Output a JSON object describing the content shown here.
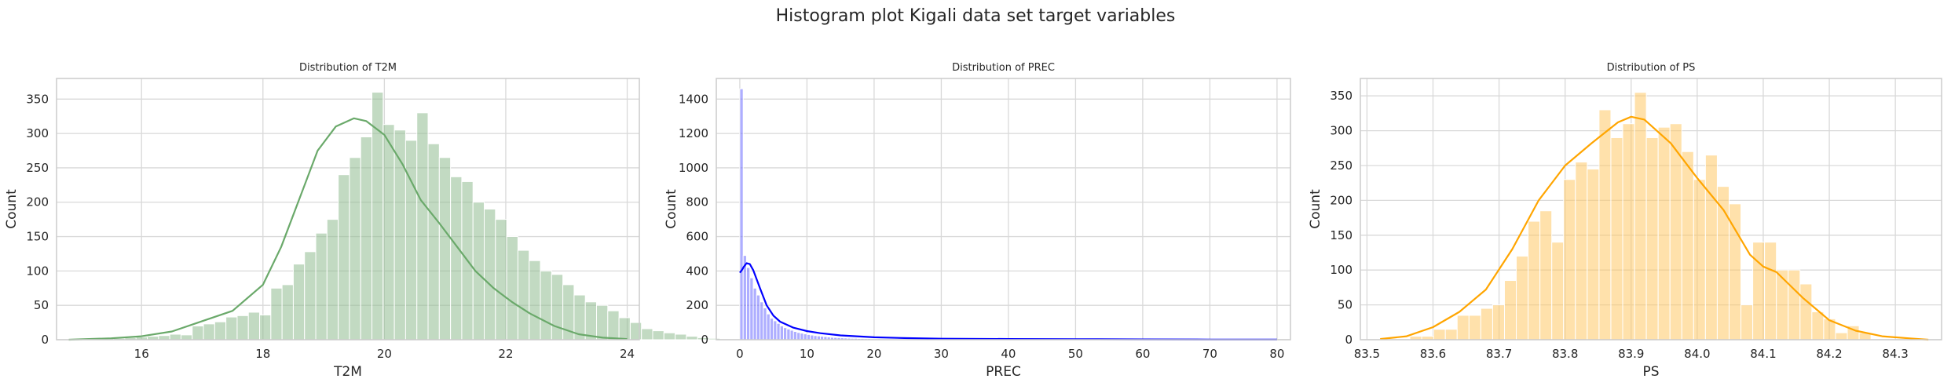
{
  "figure": {
    "suptitle": "Histogram plot Kigali data set target variables"
  },
  "chart_data": [
    {
      "type": "bar",
      "subtype": "histogram-with-kde",
      "title": "Distribution of T2M",
      "xlabel": "T2M",
      "ylabel": "Count",
      "color": "#8fbc8f",
      "kde_color": "#6aa96a",
      "xlim": [
        14.6,
        24.2
      ],
      "ylim": [
        0,
        380
      ],
      "xticks": [
        16,
        18,
        20,
        22,
        24
      ],
      "yticks": [
        0,
        50,
        100,
        150,
        200,
        250,
        300,
        350
      ],
      "bin_start": 14.8,
      "bin_width": 0.185,
      "values": [
        1,
        1,
        1,
        2,
        2,
        3,
        4,
        5,
        6,
        8,
        7,
        20,
        23,
        26,
        33,
        35,
        40,
        36,
        75,
        80,
        110,
        128,
        155,
        175,
        240,
        265,
        295,
        360,
        313,
        305,
        290,
        330,
        285,
        265,
        237,
        230,
        200,
        190,
        175,
        150,
        130,
        115,
        100,
        95,
        80,
        65,
        55,
        50,
        42,
        32,
        25,
        16,
        13,
        10,
        8,
        5,
        3,
        2,
        1,
        1
      ],
      "kde": {
        "x": [
          14.8,
          15.5,
          16.0,
          16.5,
          17.0,
          17.5,
          18.0,
          18.3,
          18.6,
          18.9,
          19.2,
          19.5,
          19.7,
          20.0,
          20.3,
          20.6,
          20.9,
          21.2,
          21.5,
          21.8,
          22.1,
          22.4,
          22.8,
          23.2,
          23.6,
          24.0
        ],
        "y": [
          0,
          2,
          5,
          12,
          27,
          42,
          80,
          135,
          205,
          275,
          310,
          322,
          318,
          298,
          255,
          203,
          170,
          135,
          100,
          75,
          55,
          38,
          20,
          8,
          3,
          1
        ]
      }
    },
    {
      "type": "bar",
      "subtype": "histogram-with-kde",
      "title": "Distribution of PREC",
      "xlabel": "PREC",
      "ylabel": "Count",
      "color": "#6b6bff",
      "kde_color": "#0000ff",
      "xlim": [
        -3.5,
        82
      ],
      "ylim": [
        0,
        1520
      ],
      "xticks": [
        0,
        10,
        20,
        30,
        40,
        50,
        60,
        70,
        80
      ],
      "yticks": [
        0,
        200,
        400,
        600,
        800,
        1000,
        1200,
        1400
      ],
      "bin_start": 0,
      "bin_width": 0.5,
      "values": [
        1460,
        490,
        420,
        360,
        300,
        260,
        220,
        185,
        150,
        125,
        110,
        95,
        80,
        70,
        62,
        55,
        48,
        42,
        38,
        34,
        30,
        27,
        24,
        22,
        20,
        18,
        16,
        14,
        13,
        12,
        11,
        10,
        9,
        8,
        8,
        7,
        7,
        6,
        6,
        5,
        5,
        5,
        4,
        4,
        4,
        3,
        3,
        3,
        3,
        3,
        2,
        2,
        2,
        2,
        2,
        2,
        2,
        2,
        2,
        2,
        1,
        1,
        1,
        1,
        1,
        1,
        1,
        1,
        1,
        1,
        1,
        1,
        1,
        1,
        1,
        1,
        1,
        1,
        1,
        1,
        1,
        1,
        1,
        1,
        1,
        1,
        1,
        1,
        1,
        1,
        1,
        1,
        1,
        1,
        1,
        1,
        1,
        1,
        1,
        1,
        1,
        1,
        1,
        1,
        1,
        1,
        1,
        1,
        1,
        1,
        1,
        1,
        1,
        1,
        1,
        1,
        1,
        1,
        1,
        1,
        1,
        1,
        1,
        1,
        1,
        1,
        1,
        1,
        1,
        1,
        1,
        1,
        1,
        1,
        1,
        1,
        1,
        1,
        1,
        1,
        1,
        1,
        1,
        1,
        1,
        1,
        1,
        1,
        1,
        1,
        1,
        1,
        1,
        1,
        1,
        1,
        1,
        1,
        1,
        1
      ],
      "kde": {
        "x": [
          0,
          0.3,
          0.6,
          1.0,
          1.5,
          2.0,
          3.0,
          4.0,
          5.0,
          6.0,
          8.0,
          10,
          12,
          15,
          20,
          25,
          30,
          40,
          50,
          60,
          70,
          80
        ],
        "y": [
          390,
          405,
          425,
          445,
          440,
          405,
          300,
          200,
          140,
          105,
          70,
          50,
          38,
          25,
          14,
          9,
          6,
          4,
          3,
          2,
          1,
          1
        ]
      }
    },
    {
      "type": "bar",
      "subtype": "histogram-with-kde",
      "title": "Distribution of PS",
      "xlabel": "PS",
      "ylabel": "Count",
      "color": "#ffc966",
      "kde_color": "#ffa500",
      "xlim": [
        83.49,
        84.37
      ],
      "ylim": [
        0,
        375
      ],
      "xticks": [
        83.5,
        83.6,
        83.7,
        83.8,
        83.9,
        84.0,
        84.1,
        84.2,
        84.3
      ],
      "xtick_labels": [
        "83.5",
        "83.6",
        "83.7",
        "83.8",
        "83.9",
        "84.0",
        "84.1",
        "84.2",
        "84.3"
      ],
      "yticks": [
        0,
        50,
        100,
        150,
        200,
        250,
        300,
        350
      ],
      "bin_start": 83.565,
      "bin_width": 0.0179,
      "values": [
        5,
        5,
        15,
        15,
        35,
        35,
        45,
        50,
        85,
        120,
        170,
        185,
        140,
        230,
        255,
        245,
        330,
        290,
        310,
        355,
        290,
        305,
        310,
        270,
        230,
        265,
        220,
        195,
        50,
        140,
        140,
        100,
        100,
        80,
        40,
        30,
        10,
        20,
        10
      ],
      "kde": {
        "x": [
          83.52,
          83.56,
          83.6,
          83.64,
          83.68,
          83.72,
          83.76,
          83.8,
          83.84,
          83.88,
          83.9,
          83.92,
          83.96,
          84.0,
          84.04,
          84.08,
          84.1,
          84.12,
          84.16,
          84.2,
          84.24,
          84.28,
          84.32,
          84.35
        ],
        "y": [
          1,
          5,
          18,
          40,
          72,
          130,
          200,
          250,
          282,
          312,
          320,
          316,
          282,
          232,
          186,
          122,
          105,
          97,
          60,
          28,
          13,
          5,
          2,
          0
        ]
      }
    }
  ]
}
